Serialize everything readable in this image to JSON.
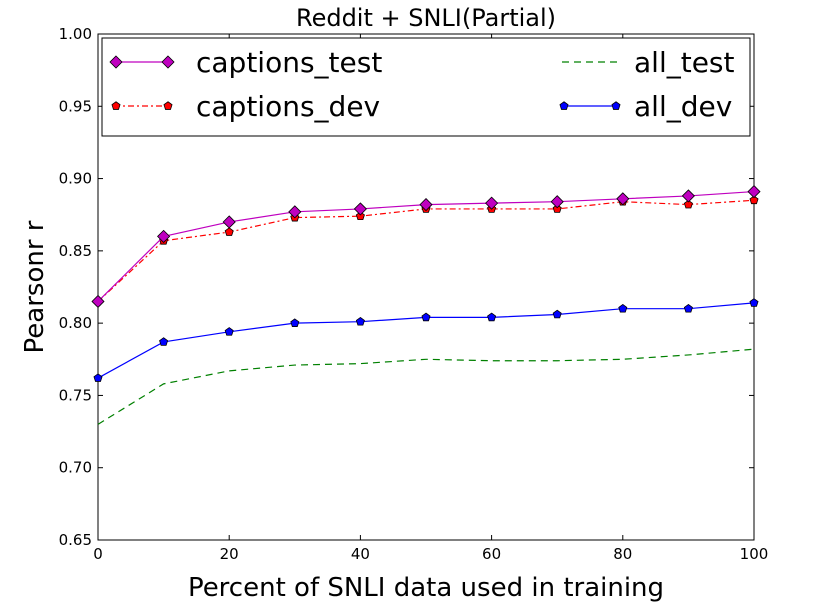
{
  "chart_data": {
    "type": "line",
    "title": "Reddit + SNLI(Partial)",
    "xlabel": "Percent of SNLI data used in training",
    "ylabel": "Pearsonr r",
    "xlim": [
      0,
      100
    ],
    "ylim": [
      0.65,
      1.0
    ],
    "x_ticks": [
      "0",
      "20",
      "40",
      "60",
      "80",
      "100"
    ],
    "y_ticks": [
      "0.65",
      "0.70",
      "0.75",
      "0.80",
      "0.85",
      "0.90",
      "0.95",
      "1.00"
    ],
    "x": [
      0,
      10,
      20,
      30,
      40,
      50,
      60,
      70,
      80,
      90,
      100
    ],
    "grid": false,
    "legend_position": "top",
    "series": [
      {
        "name": "captions_test",
        "color": "#bf00bf",
        "marker": "diamond",
        "line_style": "solid",
        "values": [
          0.815,
          0.86,
          0.87,
          0.877,
          0.879,
          0.882,
          0.883,
          0.884,
          0.886,
          0.888,
          0.891
        ]
      },
      {
        "name": "captions_dev",
        "color": "#ff0000",
        "marker": "pentagon",
        "line_style": "dash-dot",
        "values": [
          0.815,
          0.857,
          0.863,
          0.873,
          0.874,
          0.879,
          0.879,
          0.879,
          0.884,
          0.882,
          0.885
        ]
      },
      {
        "name": "all_test",
        "color": "#008000",
        "marker": "none",
        "line_style": "dashed",
        "values": [
          0.73,
          0.758,
          0.767,
          0.771,
          0.772,
          0.775,
          0.774,
          0.774,
          0.775,
          0.778,
          0.782
        ]
      },
      {
        "name": "all_dev",
        "color": "#0000ff",
        "marker": "pentagon",
        "line_style": "solid",
        "values": [
          0.762,
          0.787,
          0.794,
          0.8,
          0.801,
          0.804,
          0.804,
          0.806,
          0.81,
          0.81,
          0.814
        ]
      }
    ]
  }
}
